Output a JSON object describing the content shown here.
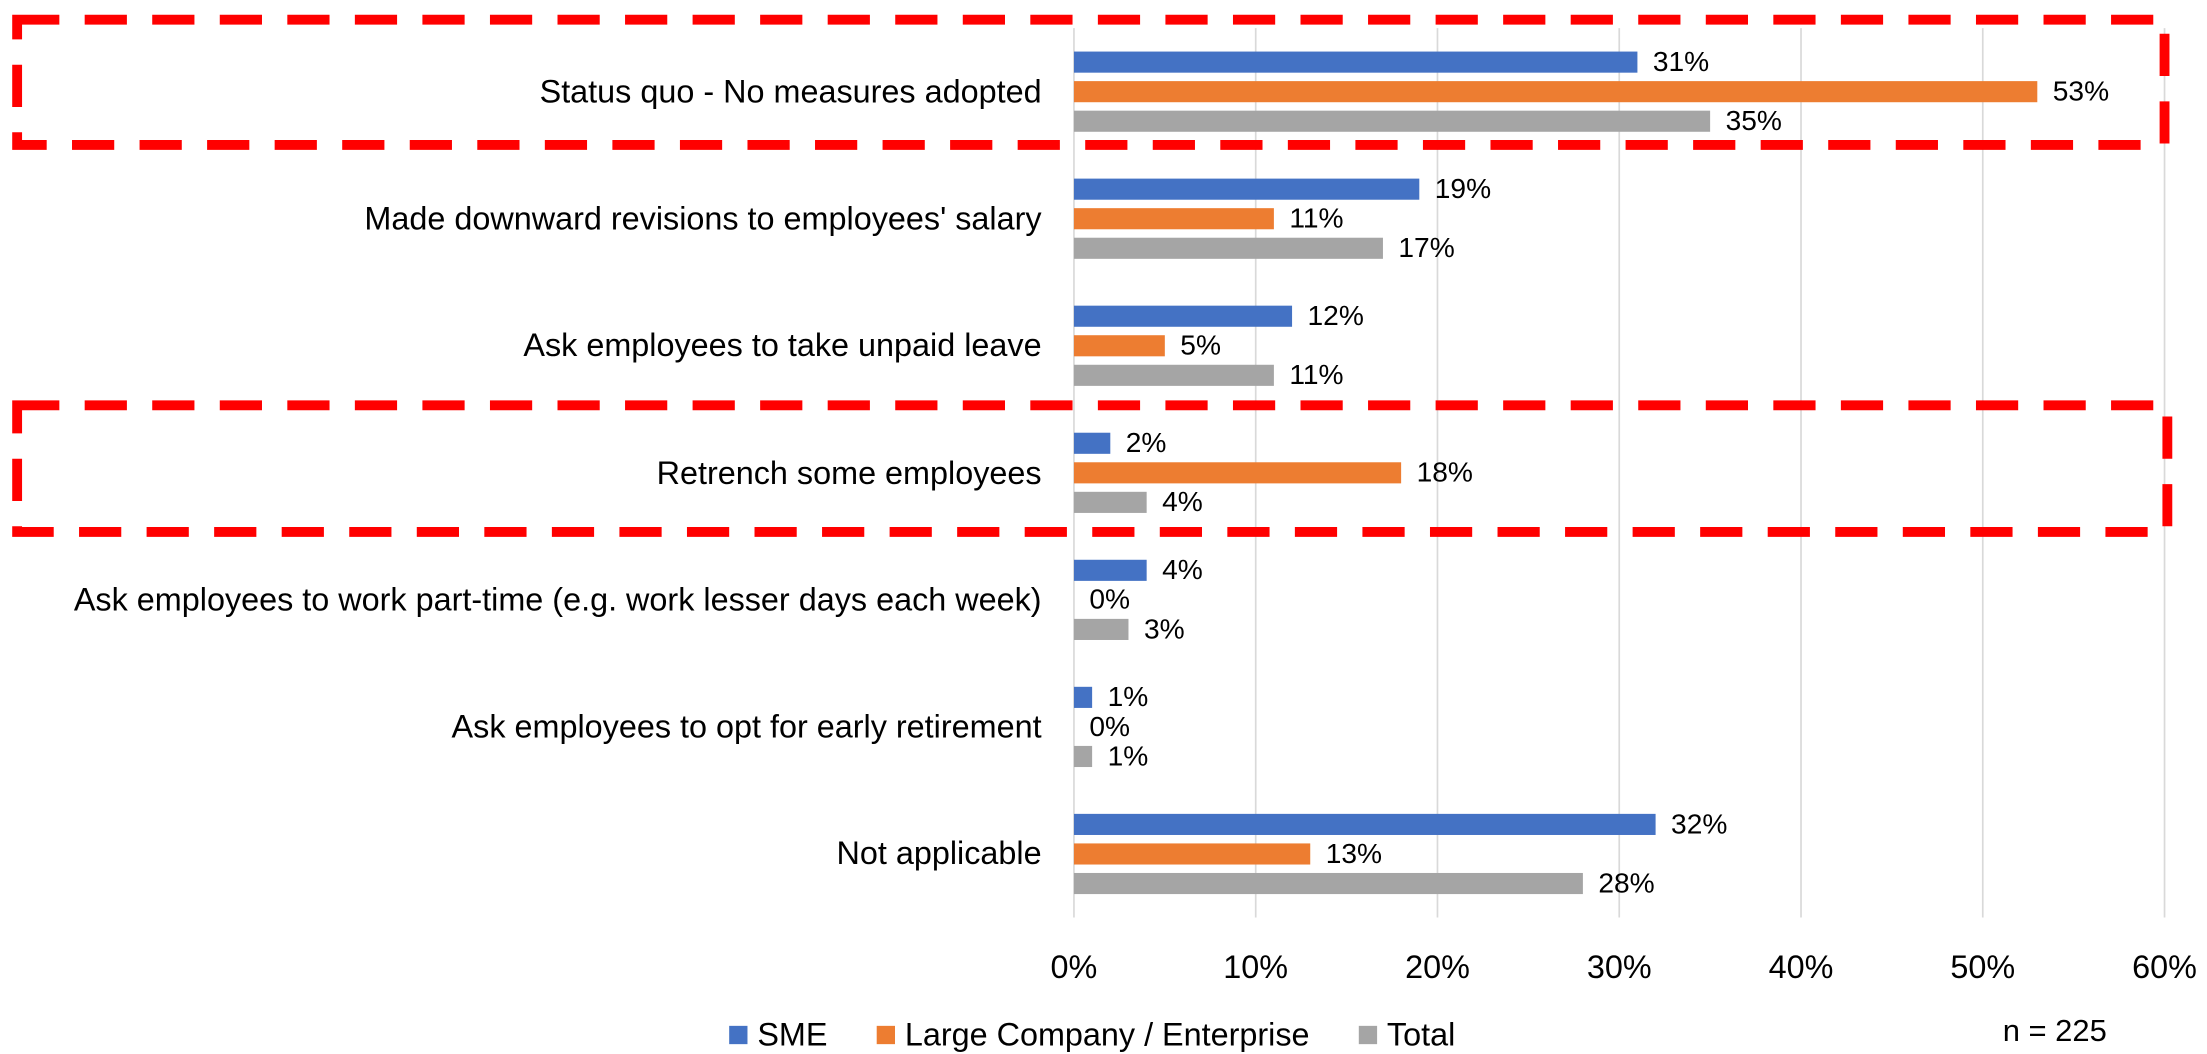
{
  "chart_data": {
    "type": "bar",
    "orientation": "horizontal",
    "categories": [
      "Status quo - No measures adopted",
      "Made downward revisions to employees' salary",
      "Ask employees to take unpaid leave",
      "Retrench some employees",
      "Ask employees to work part-time (e.g. work lesser days each week)",
      "Ask employees to opt for early retirement",
      "Not applicable"
    ],
    "series": [
      {
        "name": "SME",
        "color": "#4472c4",
        "values": [
          31,
          19,
          12,
          2,
          4,
          1,
          32
        ],
        "value_labels": [
          "31%",
          "19%",
          "12%",
          "2%",
          "4%",
          "1%",
          "32%"
        ]
      },
      {
        "name": "Large Company / Enterprise",
        "color": "#ed7d31",
        "values": [
          53,
          11,
          5,
          18,
          0,
          0,
          13
        ],
        "value_labels": [
          "53%",
          "11%",
          "5%",
          "18%",
          "0%",
          "0%",
          "13%"
        ]
      },
      {
        "name": "Total",
        "color": "#a5a5a5",
        "values": [
          35,
          17,
          11,
          4,
          3,
          1,
          28
        ],
        "value_labels": [
          "35%",
          "17%",
          "11%",
          "4%",
          "3%",
          "1%",
          "28%"
        ]
      }
    ],
    "xlim": [
      0,
      60
    ],
    "xticks": [
      {
        "value": 0,
        "label": "0%"
      },
      {
        "value": 10,
        "label": "10%"
      },
      {
        "value": 20,
        "label": "20%"
      },
      {
        "value": 30,
        "label": "30%"
      },
      {
        "value": 40,
        "label": "40%"
      },
      {
        "value": 50,
        "label": "50%"
      },
      {
        "value": 60,
        "label": "60%"
      }
    ],
    "grid": true,
    "legend": "bottom",
    "annotation": "n = 225"
  }
}
